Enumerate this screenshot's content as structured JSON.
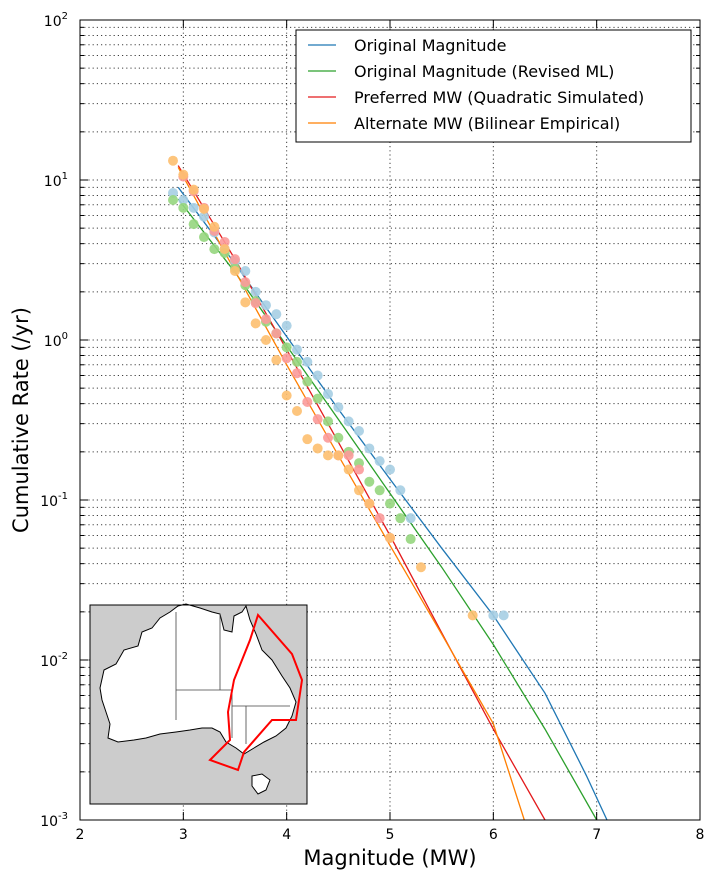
{
  "chart_data": {
    "type": "scatter",
    "title": "",
    "xlabel": "Magnitude (MW)",
    "ylabel": "Cumulative Rate (/yr)",
    "xlim": [
      2,
      8
    ],
    "ylim": [
      0.001,
      100
    ],
    "yscale": "log",
    "grid": true,
    "legend_position": "top-right",
    "x_ticks": [
      "2",
      "3",
      "4",
      "5",
      "6",
      "7",
      "8"
    ],
    "y_ticks": [
      {
        "value": 0.001,
        "base": "10",
        "exp": "-3"
      },
      {
        "value": 0.01,
        "base": "10",
        "exp": "-2"
      },
      {
        "value": 0.1,
        "base": "10",
        "exp": "-1"
      },
      {
        "value": 1,
        "base": "10",
        "exp": "0"
      },
      {
        "value": 10,
        "base": "10",
        "exp": "1"
      },
      {
        "value": 100,
        "base": "10",
        "exp": "2"
      }
    ],
    "series": [
      {
        "name": "Original Magnitude",
        "color": "#1f77b4",
        "point_color": "#a6cee3",
        "points": [
          [
            2.9,
            8.3
          ],
          [
            3.0,
            7.5
          ],
          [
            3.1,
            6.7
          ],
          [
            3.2,
            5.9
          ],
          [
            3.3,
            4.7
          ],
          [
            3.4,
            3.7
          ],
          [
            3.5,
            3.1
          ],
          [
            3.6,
            2.7
          ],
          [
            3.7,
            2.0
          ],
          [
            3.8,
            1.65
          ],
          [
            3.9,
            1.45
          ],
          [
            4.0,
            1.23
          ],
          [
            4.1,
            0.87
          ],
          [
            4.2,
            0.73
          ],
          [
            4.3,
            0.6
          ],
          [
            4.4,
            0.46
          ],
          [
            4.5,
            0.38
          ],
          [
            4.6,
            0.31
          ],
          [
            4.7,
            0.27
          ],
          [
            4.8,
            0.21
          ],
          [
            4.9,
            0.175
          ],
          [
            5.0,
            0.155
          ],
          [
            5.1,
            0.115
          ],
          [
            5.2,
            0.077
          ],
          [
            6.0,
            0.019
          ],
          [
            6.1,
            0.019
          ]
        ],
        "curve": [
          [
            2.95,
            9.0
          ],
          [
            3.5,
            3.0
          ],
          [
            4.0,
            1.05
          ],
          [
            4.5,
            0.37
          ],
          [
            5.0,
            0.135
          ],
          [
            5.5,
            0.05
          ],
          [
            6.0,
            0.019
          ],
          [
            6.5,
            0.0062
          ],
          [
            6.9,
            0.0019
          ],
          [
            7.1,
            0.001
          ]
        ]
      },
      {
        "name": "Original Magnitude (Revised ML)",
        "color": "#2ca02c",
        "point_color": "#96d67e",
        "points": [
          [
            2.9,
            7.5
          ],
          [
            3.0,
            6.7
          ],
          [
            3.1,
            5.3
          ],
          [
            3.2,
            4.4
          ],
          [
            3.3,
            3.7
          ],
          [
            3.4,
            3.5
          ],
          [
            3.5,
            2.8
          ],
          [
            3.6,
            2.2
          ],
          [
            3.7,
            1.75
          ],
          [
            3.8,
            1.3
          ],
          [
            3.9,
            1.1
          ],
          [
            4.0,
            0.9
          ],
          [
            4.1,
            0.73
          ],
          [
            4.2,
            0.55
          ],
          [
            4.3,
            0.43
          ],
          [
            4.4,
            0.31
          ],
          [
            4.5,
            0.245
          ],
          [
            4.6,
            0.2
          ],
          [
            4.7,
            0.17
          ],
          [
            4.8,
            0.13
          ],
          [
            4.9,
            0.115
          ],
          [
            5.0,
            0.095
          ],
          [
            5.1,
            0.077
          ],
          [
            5.2,
            0.057
          ]
        ],
        "curve": [
          [
            2.95,
            7.6
          ],
          [
            3.5,
            2.65
          ],
          [
            4.0,
            0.92
          ],
          [
            4.5,
            0.32
          ],
          [
            5.0,
            0.11
          ],
          [
            5.5,
            0.038
          ],
          [
            6.0,
            0.0125
          ],
          [
            6.5,
            0.0037
          ],
          [
            7.0,
            0.001
          ]
        ]
      },
      {
        "name": "Preferred MW (Quadratic Simulated)",
        "color": "#e31a1c",
        "point_color": "#fb9a99",
        "points": [
          [
            3.0,
            10.5
          ],
          [
            3.1,
            8.5
          ],
          [
            3.2,
            6.7
          ],
          [
            3.3,
            4.8
          ],
          [
            3.4,
            4.1
          ],
          [
            3.5,
            3.2
          ],
          [
            3.6,
            2.3
          ],
          [
            3.7,
            1.7
          ],
          [
            3.8,
            1.35
          ],
          [
            3.9,
            1.1
          ],
          [
            4.0,
            0.77
          ],
          [
            4.1,
            0.62
          ],
          [
            4.2,
            0.41
          ],
          [
            4.3,
            0.32
          ],
          [
            4.4,
            0.245
          ],
          [
            4.5,
            0.19
          ],
          [
            4.6,
            0.19
          ],
          [
            4.7,
            0.155
          ],
          [
            4.8,
            0.095
          ],
          [
            4.9,
            0.077
          ],
          [
            5.0,
            0.058
          ]
        ],
        "curve": [
          [
            2.95,
            12.3
          ],
          [
            3.5,
            3.2
          ],
          [
            4.0,
            0.87
          ],
          [
            4.5,
            0.23
          ],
          [
            5.0,
            0.06
          ],
          [
            5.5,
            0.0148
          ],
          [
            6.0,
            0.0037
          ],
          [
            6.5,
            0.001
          ]
        ]
      },
      {
        "name": "Alternate MW (Bilinear Empirical)",
        "color": "#ff7f00",
        "point_color": "#fdbf6f",
        "points": [
          [
            2.9,
            13.2
          ],
          [
            3.0,
            10.8
          ],
          [
            3.1,
            8.7
          ],
          [
            3.2,
            6.6
          ],
          [
            3.3,
            5.1
          ],
          [
            3.4,
            3.7
          ],
          [
            3.5,
            2.7
          ],
          [
            3.6,
            1.72
          ],
          [
            3.7,
            1.27
          ],
          [
            3.8,
            1.0
          ],
          [
            3.9,
            0.75
          ],
          [
            4.0,
            0.45
          ],
          [
            4.1,
            0.36
          ],
          [
            4.2,
            0.24
          ],
          [
            4.3,
            0.21
          ],
          [
            4.4,
            0.19
          ],
          [
            4.5,
            0.19
          ],
          [
            4.6,
            0.155
          ],
          [
            4.7,
            0.115
          ],
          [
            4.8,
            0.095
          ],
          [
            5.0,
            0.058
          ],
          [
            5.3,
            0.038
          ],
          [
            5.8,
            0.019
          ]
        ],
        "curve": [
          [
            2.95,
            12.0
          ],
          [
            3.5,
            2.7
          ],
          [
            4.0,
            0.7
          ],
          [
            4.5,
            0.19
          ],
          [
            5.0,
            0.052
          ],
          [
            5.5,
            0.0145
          ],
          [
            6.0,
            0.004
          ],
          [
            6.3,
            0.001
          ]
        ]
      }
    ]
  },
  "inset": {
    "description_label": "Australia region map",
    "land_color": "#ffffff",
    "sea_color": "#cccccc",
    "region_color": "#ff0000"
  }
}
